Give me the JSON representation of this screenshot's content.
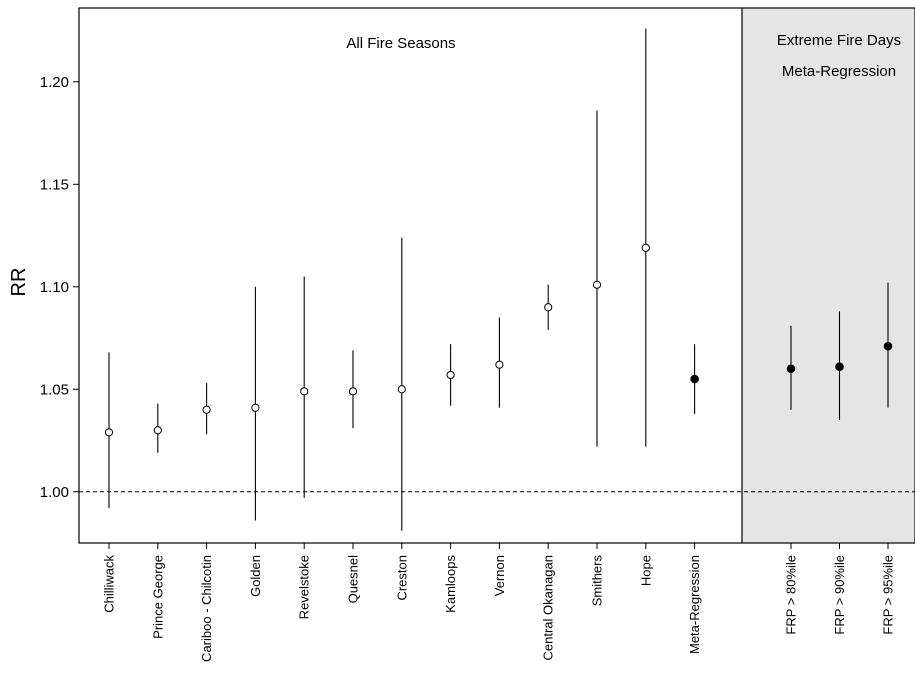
{
  "chart_data": {
    "type": "scatter",
    "subtype": "forest-plot",
    "ylabel": "RR",
    "ylim": [
      0.975,
      1.236
    ],
    "yticks": [
      "1.00",
      "1.05",
      "1.10",
      "1.15",
      "1.20"
    ],
    "reference_line": 1.0,
    "panels": [
      {
        "title": "All Fire Seasons",
        "background": "#ffffff",
        "points": [
          {
            "label": "Chilliwack",
            "estimate": 1.029,
            "lower": 0.992,
            "upper": 1.068,
            "filled": false
          },
          {
            "label": "Prince George",
            "estimate": 1.03,
            "lower": 1.019,
            "upper": 1.043,
            "filled": false
          },
          {
            "label": "Cariboo - Chilcotin",
            "estimate": 1.04,
            "lower": 1.028,
            "upper": 1.053,
            "filled": false
          },
          {
            "label": "Golden",
            "estimate": 1.041,
            "lower": 0.986,
            "upper": 1.1,
            "filled": false
          },
          {
            "label": "Revelstoke",
            "estimate": 1.049,
            "lower": 0.997,
            "upper": 1.105,
            "filled": false
          },
          {
            "label": "Quesnel",
            "estimate": 1.049,
            "lower": 1.031,
            "upper": 1.069,
            "filled": false
          },
          {
            "label": "Creston",
            "estimate": 1.05,
            "lower": 0.981,
            "upper": 1.124,
            "filled": false
          },
          {
            "label": "Kamloops",
            "estimate": 1.057,
            "lower": 1.042,
            "upper": 1.072,
            "filled": false
          },
          {
            "label": "Vernon",
            "estimate": 1.062,
            "lower": 1.041,
            "upper": 1.085,
            "filled": false
          },
          {
            "label": "Central Okanagan",
            "estimate": 1.09,
            "lower": 1.079,
            "upper": 1.101,
            "filled": false
          },
          {
            "label": "Smithers",
            "estimate": 1.101,
            "lower": 1.022,
            "upper": 1.186,
            "filled": false
          },
          {
            "label": "Hope",
            "estimate": 1.119,
            "lower": 1.022,
            "upper": 1.226,
            "filled": false
          },
          {
            "label": "Meta-Regression",
            "estimate": 1.055,
            "lower": 1.038,
            "upper": 1.072,
            "filled": true
          }
        ]
      },
      {
        "title_lines": [
          "Extreme Fire Days",
          "Meta-Regression"
        ],
        "background": "#e5e5e5",
        "points": [
          {
            "label": "FRP > 80%ile",
            "estimate": 1.06,
            "lower": 1.04,
            "upper": 1.081,
            "filled": true
          },
          {
            "label": "FRP > 90%ile",
            "estimate": 1.061,
            "lower": 1.035,
            "upper": 1.088,
            "filled": true
          },
          {
            "label": "FRP > 95%ile",
            "estimate": 1.071,
            "lower": 1.041,
            "upper": 1.102,
            "filled": true
          }
        ]
      }
    ]
  }
}
